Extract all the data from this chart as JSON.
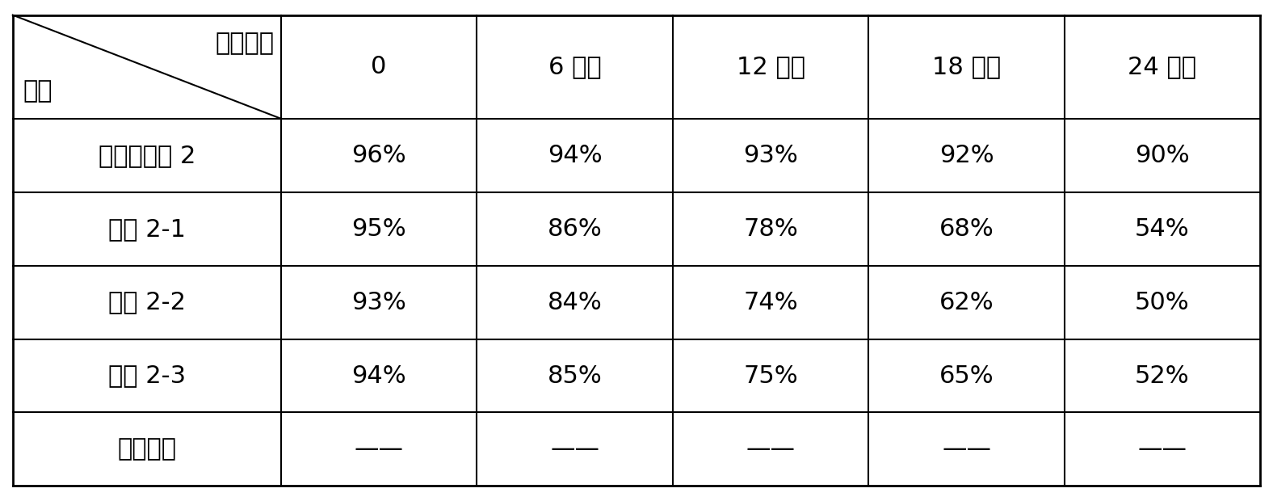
{
  "col_headers": [
    "0",
    "6 个月",
    "12 个月",
    "18 个月",
    "24 个月"
  ],
  "row_headers": [
    "植物杀菌剂 2",
    "处理 2-1",
    "处理 2-2",
    "处理 2-3",
    "清水对照"
  ],
  "cell_data": [
    [
      "96%",
      "94%",
      "93%",
      "92%",
      "90%"
    ],
    [
      "95%",
      "86%",
      "78%",
      "68%",
      "54%"
    ],
    [
      "93%",
      "84%",
      "74%",
      "62%",
      "50%"
    ],
    [
      "94%",
      "85%",
      "75%",
      "65%",
      "52%"
    ],
    [
      "——",
      "——",
      "——",
      "——",
      "——"
    ]
  ],
  "header_top": "保存时间",
  "header_bottom": "试剂",
  "font_size": 22,
  "bg_color": "#ffffff",
  "text_color": "#000000",
  "line_color": "#000000"
}
